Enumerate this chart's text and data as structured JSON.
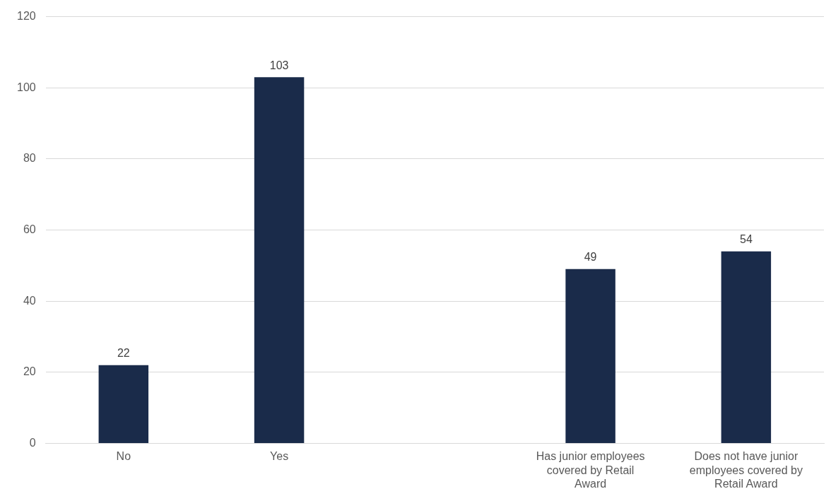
{
  "chart_data": {
    "type": "bar",
    "categories": [
      "No",
      "Yes",
      null,
      "Has junior employees covered by Retail Award",
      "Does not have junior employees covered by Retail Award"
    ],
    "values": [
      22,
      103,
      null,
      49,
      54
    ],
    "color": "#1a2b4a",
    "ylim": [
      0,
      120
    ],
    "yticks": [
      0,
      20,
      40,
      60,
      80,
      100,
      120
    ],
    "grid": "y",
    "data_labels": true,
    "legend": false
  }
}
